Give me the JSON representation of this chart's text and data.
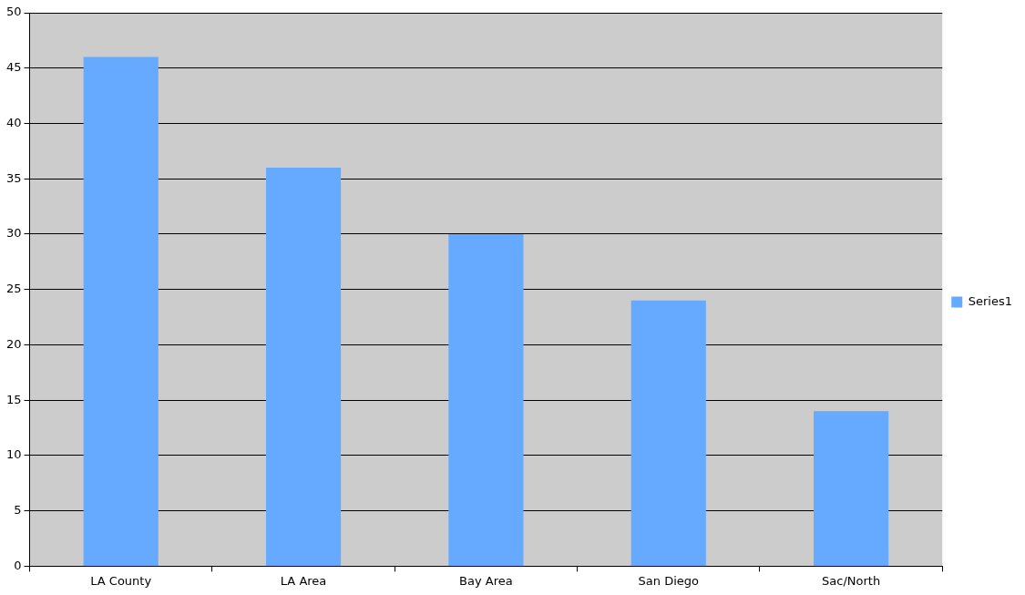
{
  "chart_data": {
    "type": "bar",
    "categories": [
      "LA County",
      "LA Area",
      "Bay Area",
      "San Diego",
      "Sac/North"
    ],
    "series": [
      {
        "name": "Series1",
        "color": "#66aaff",
        "values": [
          46,
          36,
          30,
          24,
          14
        ]
      }
    ],
    "ylim": [
      0,
      50
    ],
    "yticks": [
      0,
      5,
      10,
      15,
      20,
      25,
      30,
      35,
      40,
      45,
      50
    ],
    "grid": "y",
    "legend": "right"
  }
}
